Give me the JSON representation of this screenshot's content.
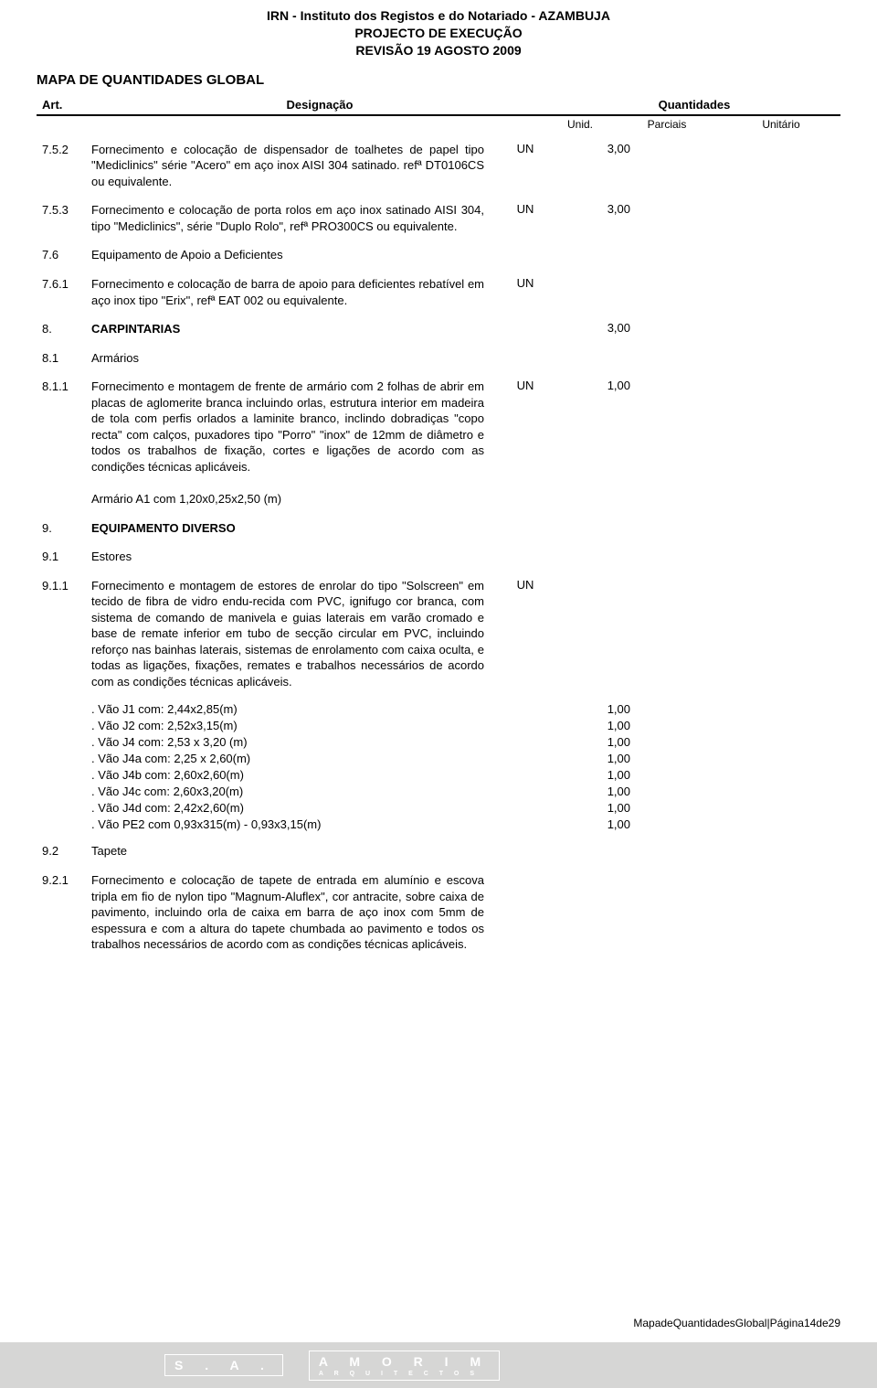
{
  "header": {
    "line1": "IRN - Instituto dos Registos e do Notariado - AZAMBUJA",
    "line2": "PROJECTO DE EXECUÇÃO",
    "line3": "REVISÃO 19 AGOSTO 2009"
  },
  "section_title": "MAPA DE QUANTIDADES GLOBAL",
  "columns": {
    "art": "Art.",
    "desig": "Designação",
    "quant": "Quantidades",
    "unid": "Unid.",
    "parc": "Parciais",
    "unit": "Unitário"
  },
  "rows": [
    {
      "art": "7.5.2",
      "desc": "Fornecimento e colocação de dispensador de toalhetes de papel tipo \"Mediclinics\" série \"Acero\" em aço inox AISI 304 satinado. refª DT0106CS ou equivalente.",
      "un": "UN",
      "parc": "3,00",
      "unit": ""
    },
    {
      "art": "7.5.3",
      "desc": "Fornecimento e colocação de porta rolos em aço inox satinado AISI 304, tipo \"Mediclinics\", série \"Duplo Rolo\", refª PRO300CS ou equivalente.",
      "un": "UN",
      "parc": "3,00",
      "unit": ""
    },
    {
      "art": "7.6",
      "desc": "Equipamento de Apoio a Deficientes",
      "un": "",
      "parc": "",
      "unit": ""
    },
    {
      "art": "7.6.1",
      "desc": "Fornecimento e colocação de barra de apoio para deficientes rebatível em aço inox tipo \"Erix\", refª EAT 002 ou equivalente.",
      "un": "UN",
      "parc": "",
      "unit": ""
    },
    {
      "art": "8.",
      "desc": "CARPINTARIAS",
      "bold": true,
      "un": "",
      "parc": "3,00",
      "unit": ""
    },
    {
      "art": "8.1",
      "desc": "Armários",
      "un": "",
      "parc": "",
      "unit": ""
    },
    {
      "art": "8.1.1",
      "desc": "Fornecimento e montagem de frente de armário com 2 folhas de abrir em placas de aglomerite branca incluindo orlas, estrutura interior em madeira de tola com perfis orlados a laminite branco, inclindo dobradiças \"copo recta\" com calços, puxadores tipo \"Porro\" \"inox\" de 12mm de diâmetro e todos os trabalhos de fixação, cortes e ligações de acordo com as condições técnicas aplicáveis.\n\nArmário A1 com 1,20x0,25x2,50 (m)",
      "un": "UN",
      "parc": "1,00",
      "unit": ""
    },
    {
      "art": "9.",
      "desc": "EQUIPAMENTO DIVERSO",
      "bold": true,
      "un": "",
      "parc": "",
      "unit": ""
    },
    {
      "art": "9.1",
      "desc": "Estores",
      "un": "",
      "parc": "",
      "unit": ""
    },
    {
      "art": "9.1.1",
      "desc": "Fornecimento e montagem de estores de enrolar do tipo \"Solscreen\" em tecido de fibra de vidro endu-recida com PVC, ignifugo cor branca, com sistema de comando de manivela e guias laterais em varão cromado e base de remate inferior em tubo de secção circular em PVC, incluindo reforço nas bainhas laterais, sistemas de enrolamento com caixa oculta, e todas as ligações, fixações, remates e trabalhos necessários de acordo com as condições técnicas aplicáveis.",
      "un": "UN",
      "parc": "",
      "unit": "",
      "sub": [
        {
          "desc": ". Vão J1 com: 2,44x2,85(m)",
          "parc": "1,00"
        },
        {
          "desc": ". Vão J2 com: 2,52x3,15(m)",
          "parc": "1,00"
        },
        {
          "desc": ". Vão J4 com: 2,53 x 3,20 (m)",
          "parc": "1,00"
        },
        {
          "desc": ". Vão J4a com: 2,25 x 2,60(m)",
          "parc": "1,00"
        },
        {
          "desc": ". Vão J4b com: 2,60x2,60(m)",
          "parc": "1,00"
        },
        {
          "desc": ". Vão J4c com: 2,60x3,20(m)",
          "parc": "1,00"
        },
        {
          "desc": ". Vão J4d com: 2,42x2,60(m)",
          "parc": "1,00"
        },
        {
          "desc": ". Vão PE2 com 0,93x315(m) - 0,93x3,15(m)",
          "parc": "1,00"
        }
      ]
    },
    {
      "art": "9.2",
      "desc": "Tapete",
      "un": "",
      "parc": "",
      "unit": ""
    },
    {
      "art": "9.2.1",
      "desc": "Fornecimento e colocação de tapete de entrada em alumínio e escova tripla em fio de nylon tipo \"Magnum-Aluflex\", cor antracite, sobre caixa de pavimento, incluindo orla de caixa em barra de aço inox com 5mm de espessura e com a altura do tapete chumbada ao pavimento e todos os trabalhos necessários de acordo com as condições técnicas aplicáveis.",
      "un": "",
      "parc": "",
      "unit": ""
    }
  ],
  "footer_right": "MapadeQuantidadesGlobal|Página14de29",
  "footer_logo": {
    "left": "S . A .",
    "right": "A M O R I M",
    "sub": "A R Q U I T E C T O S"
  },
  "colors": {
    "text": "#000000",
    "bg": "#ffffff",
    "stripe": "#d6d6d5",
    "logo": "#ffffff"
  }
}
